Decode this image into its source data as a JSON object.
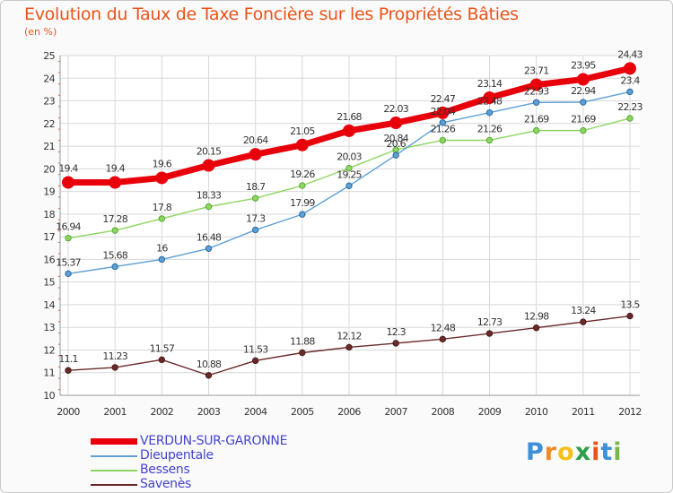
{
  "title": "Evolution du Taux de Taxe Foncière sur les Propriétés Bâties",
  "subtitle": "(en %)",
  "logo": {
    "letters": [
      "P",
      "r",
      "o",
      "x",
      "i",
      "t",
      "i"
    ],
    "colors": [
      "#3d8fd6",
      "#f08a24",
      "#f2c11b",
      "#2f9d4a",
      "#e8541a",
      "#3d8fd6",
      "#7ab648"
    ]
  },
  "chart_data": {
    "type": "line",
    "title": "Evolution du Taux de Taxe Foncière sur les Propriétés Bâties",
    "ylabel": "(en %)",
    "xlabel": "",
    "x": [
      "2000",
      "2001",
      "2002",
      "2003",
      "2004",
      "2005",
      "2006",
      "2007",
      "2008",
      "2009",
      "2010",
      "2011",
      "2012"
    ],
    "ylim": [
      10,
      25
    ],
    "yticks": [
      "10",
      "11",
      "12",
      "13",
      "14",
      "15",
      "16",
      "17",
      "18",
      "19",
      "20",
      "21",
      "22",
      "23",
      "24",
      "25"
    ],
    "grid": true,
    "series": [
      {
        "name": "VERDUN-SUR-GARONNE",
        "color": "#e8000b",
        "values": [
          19.4,
          19.4,
          19.6,
          20.15,
          20.64,
          21.05,
          21.68,
          22.03,
          22.47,
          23.14,
          23.71,
          23.95,
          24.43
        ],
        "labels": [
          "19.4",
          "19.4",
          "19.6",
          "20.15",
          "20.64",
          "21.05",
          "21.68",
          "22.03",
          "22.47",
          "23.14",
          "23.71",
          "23.95",
          "24.43"
        ]
      },
      {
        "name": "Dieupentale",
        "color": "#5e9fd4",
        "values": [
          15.37,
          15.68,
          16,
          16.48,
          17.3,
          17.99,
          19.25,
          20.6,
          22.04,
          22.48,
          22.93,
          22.94,
          23.4
        ],
        "labels": [
          "15.37",
          "15.68",
          "16",
          "16.48",
          "17.3",
          "17.99",
          "19.25",
          "20.6",
          "22.04",
          "22.48",
          "22.93",
          "22.94",
          "23.4"
        ]
      },
      {
        "name": "Bessens",
        "color": "#8ed660",
        "values": [
          16.94,
          17.28,
          17.8,
          18.33,
          18.7,
          19.26,
          20.03,
          20.84,
          21.26,
          21.26,
          21.69,
          21.69,
          22.23
        ],
        "labels": [
          "16.94",
          "17.28",
          "17.8",
          "18.33",
          "18.7",
          "19.26",
          "20.03",
          "20.84",
          "21.26",
          "21.26",
          "21.69",
          "21.69",
          "22.23"
        ]
      },
      {
        "name": "Savenès",
        "color": "#6b2a2a",
        "values": [
          11.1,
          11.23,
          11.57,
          10.88,
          11.53,
          11.88,
          12.12,
          12.3,
          12.48,
          12.73,
          12.98,
          13.24,
          13.5
        ],
        "labels": [
          "11.1",
          "11.23",
          "11.57",
          "10.88",
          "11.53",
          "11.88",
          "12.12",
          "12.3",
          "12.48",
          "12.73",
          "12.98",
          "13.24",
          "13.5"
        ]
      }
    ],
    "legend_position": "bottom-left"
  }
}
